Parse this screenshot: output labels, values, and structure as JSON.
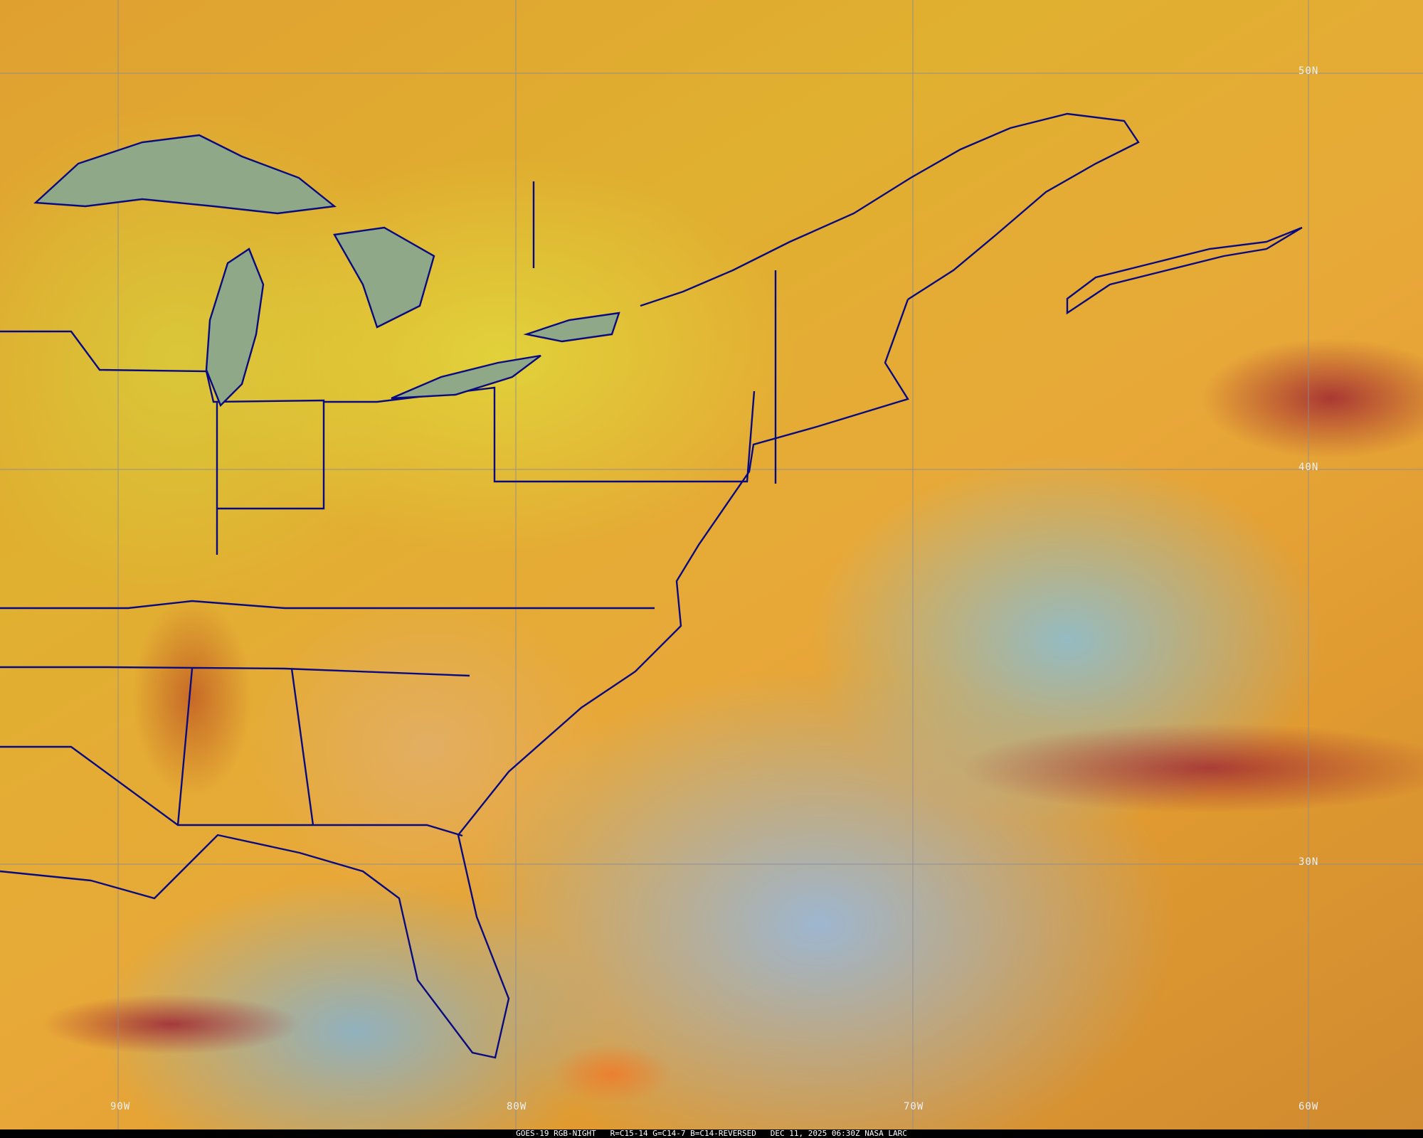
{
  "map": {
    "lat_labels": [
      "50N",
      "40N",
      "30N"
    ],
    "lon_labels": [
      "90W",
      "80W",
      "70W",
      "60W"
    ]
  },
  "caption": {
    "satellite": "GOES-19 RGB-NIGHT",
    "channels": "R=C15-14 G=C14-7 B=C14-REVERSED",
    "datetime": "DEC 11, 2025 06:30Z",
    "credit": "NASA LARC"
  }
}
